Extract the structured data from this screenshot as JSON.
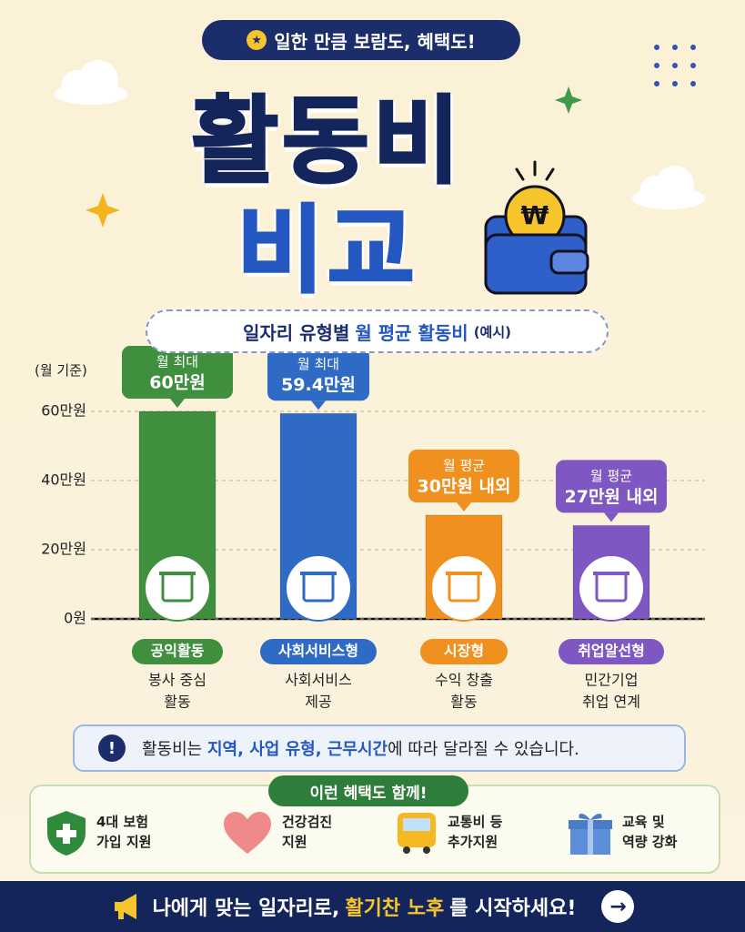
{
  "header": {
    "badge": "일한 만큼 보람도, 혜택도!",
    "title_line1": "활동비",
    "title_line2": "비교"
  },
  "chart_data": {
    "type": "bar",
    "title_parts": [
      "일자리 유형별",
      "월 평균 활동비",
      "(예시)"
    ],
    "unit_label": "(월 기준)",
    "categories": [
      "공익활동",
      "사회서비스형",
      "시장형",
      "취업알선형"
    ],
    "descriptions": [
      [
        "봉사 중심",
        "활동"
      ],
      [
        "사회서비스",
        "제공"
      ],
      [
        "수익 창출",
        "활동"
      ],
      [
        "민간기업",
        "취업 연계"
      ]
    ],
    "values": [
      60,
      59.4,
      30,
      27
    ],
    "value_notes": [
      "월 최대",
      "월 최대",
      "월 평균",
      "월 평균"
    ],
    "value_labels": [
      "60만원",
      "59.4만원",
      "30만원 내외",
      "27만원 내외"
    ],
    "colors": [
      "#3f8f3f",
      "#2f6bc4",
      "#f0901e",
      "#7e57c2"
    ],
    "ylim": [
      0,
      70
    ],
    "yticks": [
      {
        "value": 0,
        "label": "0원"
      },
      {
        "value": 20,
        "label": "20만원"
      },
      {
        "value": 40,
        "label": "40만원"
      },
      {
        "value": 60,
        "label": "60만원"
      }
    ],
    "grid": true
  },
  "notice": {
    "parts": [
      "활동비는",
      "지역, 사업 유형, 근무시간",
      "에 따라 달라질 수 있습니다."
    ]
  },
  "benefits": {
    "title": "이런 혜택도 함께!",
    "items": [
      [
        "4대 보험",
        "가입 지원"
      ],
      [
        "건강검진",
        "지원"
      ],
      [
        "교통비 등",
        "추가지원"
      ],
      [
        "교육 및",
        "역량 강화"
      ]
    ]
  },
  "footer": {
    "parts": [
      "나에게 맞는 일자리로,",
      "활기찬 노후",
      "를 시작하세요!"
    ]
  }
}
